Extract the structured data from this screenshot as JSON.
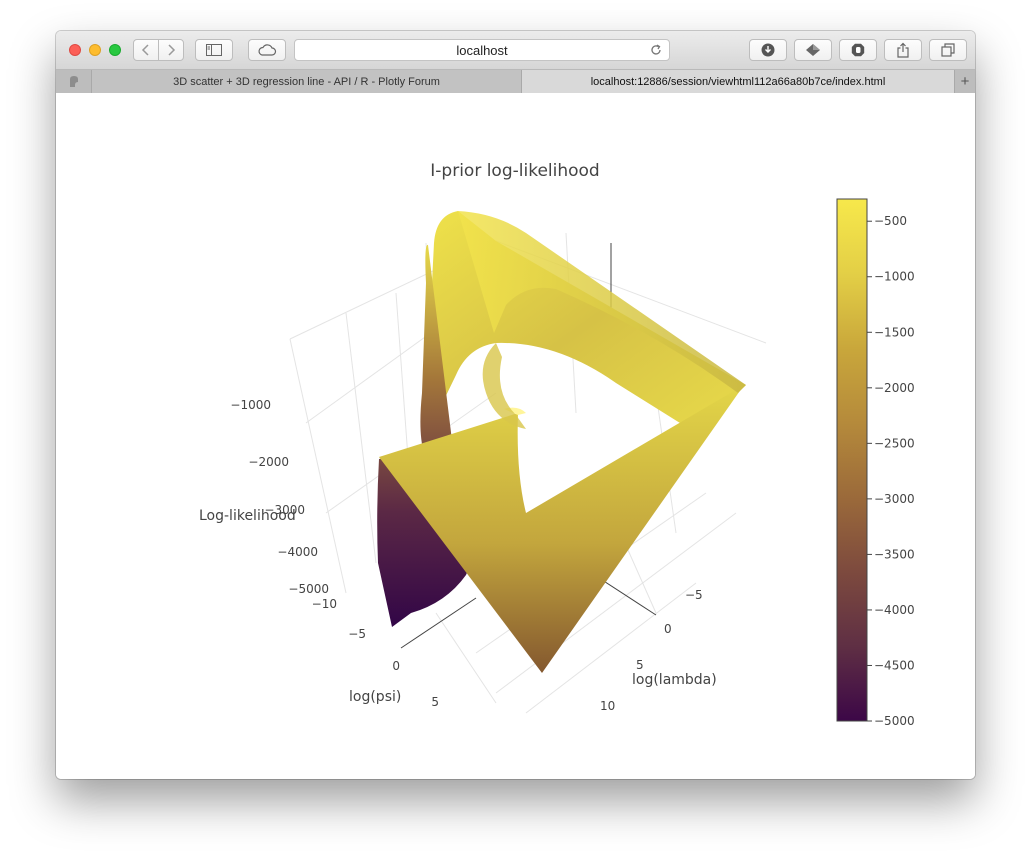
{
  "browser": {
    "url": "localhost",
    "tabs": [
      {
        "label": "3D scatter + 3D regression line - API / R - Plotly Forum",
        "active": false
      },
      {
        "label": "localhost:12886/session/viewhtml112a66a80b7ce/index.html",
        "active": true
      }
    ],
    "new_tab_label": "+"
  },
  "chart_data": {
    "type": "surface",
    "title": "I-prior log-likelihood",
    "axes": {
      "x": {
        "label": "log(lambda)",
        "ticks": [
          "−5",
          "0",
          "5",
          "10"
        ]
      },
      "y": {
        "label": "log(psi)",
        "ticks": [
          "−10",
          "−5",
          "0",
          "5"
        ]
      },
      "z": {
        "label": "Log-likelihood",
        "ticks": [
          "−1000",
          "−2000",
          "−3000",
          "−4000",
          "−5000"
        ]
      }
    },
    "colorbar": {
      "colorscale": "viridis",
      "range": [
        -5000,
        -300
      ],
      "ticks": [
        "−500",
        "−1000",
        "−1500",
        "−2000",
        "−2500",
        "−3000",
        "−3500",
        "−4000",
        "−4500",
        "−5000"
      ],
      "tick_values": [
        -500,
        -1000,
        -1500,
        -2000,
        -2500,
        -3000,
        -3500,
        -4000,
        -4500,
        -5000
      ]
    },
    "colors": {
      "high": "#f7e84b",
      "mid": "#c9a73b",
      "low": "#3c0747"
    }
  }
}
